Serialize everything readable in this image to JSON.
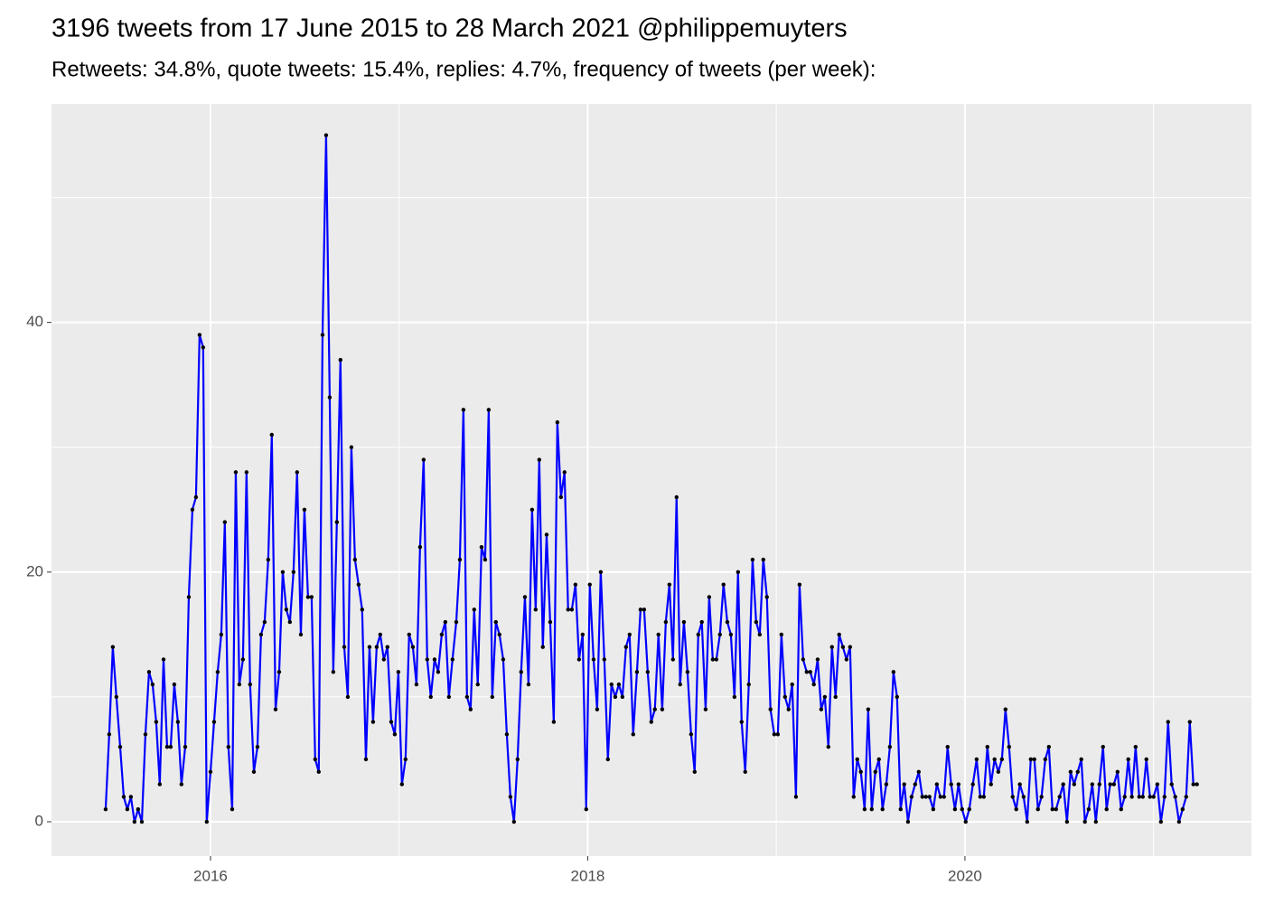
{
  "chart_data": {
    "type": "line",
    "title": "3196 tweets from 17 June 2015 to 28 March 2021 @philippemuyters",
    "subtitle": "Retweets: 34.8%, quote tweets: 15.4%, replies: 4.7%, frequency of tweets (per week):",
    "color": "#0000ff",
    "point_color": "#000000",
    "grid": true,
    "xlim": [
      2015.157,
      2021.519
    ],
    "xticks": [
      2016,
      2018,
      2020
    ],
    "minor_xticks": [
      2017,
      2019,
      2021
    ],
    "ylim": [
      -2.75,
      57.5
    ],
    "yticks": [
      0,
      20,
      40
    ],
    "minor_yticks": [
      10,
      30,
      50
    ],
    "x": [
      2015.444,
      2015.463,
      2015.482,
      2015.501,
      2015.521,
      2015.54,
      2015.559,
      2015.578,
      2015.597,
      2015.616,
      2015.636,
      2015.655,
      2015.674,
      2015.693,
      2015.712,
      2015.731,
      2015.751,
      2015.77,
      2015.789,
      2015.808,
      2015.827,
      2015.846,
      2015.866,
      2015.885,
      2015.904,
      2015.923,
      2015.942,
      2015.961,
      2015.98,
      2016,
      2016.019,
      2016.038,
      2016.057,
      2016.076,
      2016.095,
      2016.115,
      2016.134,
      2016.153,
      2016.172,
      2016.191,
      2016.21,
      2016.23,
      2016.249,
      2016.268,
      2016.287,
      2016.306,
      2016.325,
      2016.345,
      2016.364,
      2016.383,
      2016.402,
      2016.421,
      2016.44,
      2016.459,
      2016.479,
      2016.498,
      2016.517,
      2016.536,
      2016.555,
      2016.574,
      2016.594,
      2016.613,
      2016.632,
      2016.651,
      2016.67,
      2016.689,
      2016.709,
      2016.728,
      2016.747,
      2016.766,
      2016.785,
      2016.804,
      2016.824,
      2016.843,
      2016.862,
      2016.881,
      2016.9,
      2016.919,
      2016.938,
      2016.958,
      2016.977,
      2016.996,
      2017.015,
      2017.034,
      2017.053,
      2017.073,
      2017.092,
      2017.111,
      2017.13,
      2017.149,
      2017.168,
      2017.188,
      2017.207,
      2017.226,
      2017.245,
      2017.264,
      2017.283,
      2017.303,
      2017.322,
      2017.341,
      2017.36,
      2017.379,
      2017.398,
      2017.417,
      2017.437,
      2017.456,
      2017.475,
      2017.494,
      2017.513,
      2017.532,
      2017.552,
      2017.571,
      2017.59,
      2017.609,
      2017.628,
      2017.647,
      2017.667,
      2017.686,
      2017.705,
      2017.724,
      2017.743,
      2017.762,
      2017.782,
      2017.801,
      2017.82,
      2017.839,
      2017.858,
      2017.877,
      2017.896,
      2017.916,
      2017.935,
      2017.954,
      2017.973,
      2017.992,
      2018.011,
      2018.031,
      2018.05,
      2018.069,
      2018.088,
      2018.107,
      2018.126,
      2018.146,
      2018.165,
      2018.184,
      2018.203,
      2018.222,
      2018.241,
      2018.261,
      2018.28,
      2018.299,
      2018.318,
      2018.337,
      2018.356,
      2018.375,
      2018.395,
      2018.414,
      2018.433,
      2018.452,
      2018.471,
      2018.49,
      2018.51,
      2018.529,
      2018.548,
      2018.567,
      2018.586,
      2018.605,
      2018.625,
      2018.644,
      2018.663,
      2018.682,
      2018.701,
      2018.72,
      2018.74,
      2018.759,
      2018.778,
      2018.797,
      2018.816,
      2018.835,
      2018.854,
      2018.874,
      2018.893,
      2018.912,
      2018.931,
      2018.95,
      2018.969,
      2018.989,
      2019.008,
      2019.027,
      2019.046,
      2019.065,
      2019.084,
      2019.104,
      2019.123,
      2019.142,
      2019.161,
      2019.18,
      2019.199,
      2019.219,
      2019.238,
      2019.257,
      2019.276,
      2019.295,
      2019.314,
      2019.333,
      2019.353,
      2019.372,
      2019.391,
      2019.41,
      2019.429,
      2019.448,
      2019.468,
      2019.487,
      2019.506,
      2019.525,
      2019.544,
      2019.563,
      2019.583,
      2019.602,
      2019.621,
      2019.64,
      2019.659,
      2019.678,
      2019.698,
      2019.717,
      2019.736,
      2019.755,
      2019.774,
      2019.793,
      2019.812,
      2019.832,
      2019.851,
      2019.87,
      2019.889,
      2019.908,
      2019.927,
      2019.947,
      2019.966,
      2019.985,
      2020.004,
      2020.023,
      2020.042,
      2020.062,
      2020.081,
      2020.1,
      2020.119,
      2020.138,
      2020.157,
      2020.177,
      2020.196,
      2020.215,
      2020.234,
      2020.253,
      2020.272,
      2020.291,
      2020.311,
      2020.33,
      2020.349,
      2020.368,
      2020.387,
      2020.406,
      2020.426,
      2020.445,
      2020.464,
      2020.483,
      2020.502,
      2020.521,
      2020.541,
      2020.56,
      2020.579,
      2020.598,
      2020.617,
      2020.636,
      2020.656,
      2020.675,
      2020.694,
      2020.713,
      2020.732,
      2020.751,
      2020.77,
      2020.79,
      2020.809,
      2020.828,
      2020.847,
      2020.866,
      2020.885,
      2020.905,
      2020.924,
      2020.943,
      2020.962,
      2020.981,
      2021,
      2021.02,
      2021.039,
      2021.058,
      2021.077,
      2021.096,
      2021.115,
      2021.135,
      2021.154,
      2021.173,
      2021.192,
      2021.211,
      2021.23
    ],
    "values": [
      1,
      7,
      14,
      10,
      6,
      2,
      1,
      2,
      0,
      1,
      0,
      7,
      12,
      11,
      8,
      3,
      13,
      6,
      6,
      11,
      8,
      3,
      6,
      18,
      25,
      26,
      39,
      38,
      0,
      4,
      8,
      12,
      15,
      24,
      6,
      1,
      28,
      11,
      13,
      28,
      11,
      4,
      6,
      15,
      16,
      21,
      31,
      9,
      12,
      20,
      17,
      16,
      20,
      28,
      15,
      25,
      18,
      18,
      5,
      4,
      39,
      55,
      34,
      12,
      24,
      37,
      14,
      10,
      30,
      21,
      19,
      17,
      5,
      14,
      8,
      14,
      15,
      13,
      14,
      8,
      7,
      12,
      3,
      5,
      15,
      14,
      11,
      22,
      29,
      13,
      10,
      13,
      12,
      15,
      16,
      10,
      13,
      16,
      21,
      33,
      10,
      9,
      17,
      11,
      22,
      21,
      33,
      10,
      16,
      15,
      13,
      7,
      2,
      0,
      5,
      12,
      18,
      11,
      25,
      17,
      29,
      14,
      23,
      16,
      8,
      32,
      26,
      28,
      17,
      17,
      19,
      13,
      15,
      1,
      19,
      13,
      9,
      20,
      13,
      5,
      11,
      10,
      11,
      10,
      14,
      15,
      7,
      12,
      17,
      17,
      12,
      8,
      9,
      15,
      9,
      16,
      19,
      13,
      26,
      11,
      16,
      12,
      7,
      4,
      15,
      16,
      9,
      18,
      13,
      13,
      15,
      19,
      16,
      15,
      10,
      20,
      8,
      4,
      11,
      21,
      16,
      15,
      21,
      18,
      9,
      7,
      7,
      15,
      10,
      9,
      11,
      2,
      19,
      13,
      12,
      12,
      11,
      13,
      9,
      10,
      6,
      14,
      10,
      15,
      14,
      13,
      14,
      2,
      5,
      4,
      1,
      9,
      1,
      4,
      5,
      1,
      3,
      6,
      12,
      10,
      1,
      3,
      0,
      2,
      3,
      4,
      2,
      2,
      2,
      1,
      3,
      2,
      2,
      6,
      3,
      1,
      3,
      1,
      0,
      1,
      3,
      5,
      2,
      2,
      6,
      3,
      5,
      4,
      5,
      9,
      6,
      2,
      1,
      3,
      2,
      0,
      5,
      5,
      1,
      2,
      5,
      6,
      1,
      1,
      2,
      3,
      0,
      4,
      3,
      4,
      5,
      0,
      1,
      3,
      0,
      3,
      6,
      1,
      3,
      3,
      4,
      1,
      2,
      5,
      2,
      6,
      2,
      2,
      5,
      2,
      2,
      3,
      0,
      2,
      8,
      3,
      2,
      0,
      1,
      2,
      8,
      3,
      3
    ]
  }
}
